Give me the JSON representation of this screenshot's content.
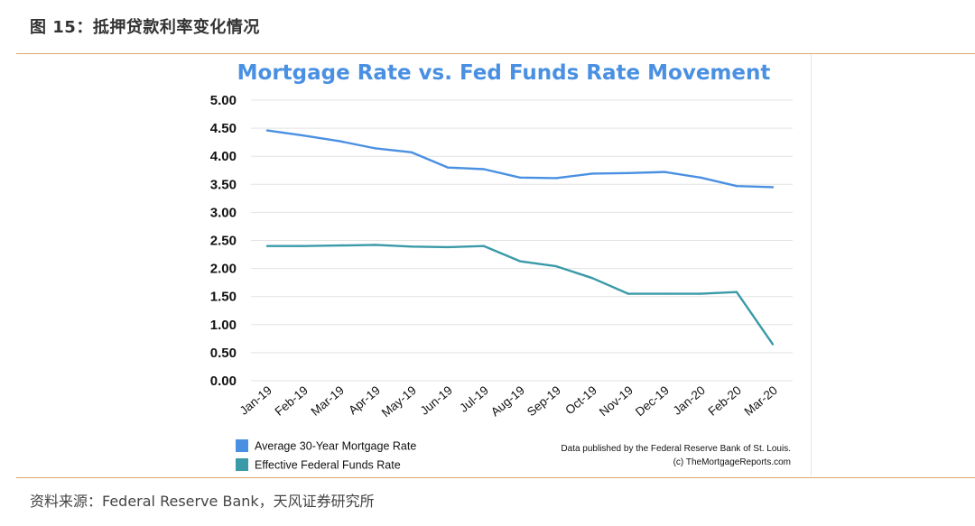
{
  "figure": {
    "title": "图 15：抵押贷款利率变化情况",
    "source": "资料来源：Federal Reserve Bank，天风证券研究所"
  },
  "chart_data": {
    "type": "line",
    "title": "Mortgage Rate vs. Fed Funds Rate Movement",
    "xlabel": "",
    "ylabel": "",
    "categories": [
      "Jan-19",
      "Feb-19",
      "Mar-19",
      "Apr-19",
      "May-19",
      "Jun-19",
      "Jul-19",
      "Aug-19",
      "Sep-19",
      "Oct-19",
      "Nov-19",
      "Dec-19",
      "Jan-20",
      "Feb-20",
      "Mar-20"
    ],
    "y_ticks": [
      "0.00",
      "0.50",
      "1.00",
      "1.50",
      "2.00",
      "2.50",
      "3.00",
      "3.50",
      "4.00",
      "4.50",
      "5.00"
    ],
    "ylim": [
      0,
      5
    ],
    "grid": true,
    "legend_position": "bottom-left",
    "series": [
      {
        "name": "Average 30-Year Mortgage Rate",
        "color": "#4a90e2",
        "values": [
          4.46,
          4.37,
          4.27,
          4.14,
          4.07,
          3.8,
          3.77,
          3.62,
          3.61,
          3.69,
          3.7,
          3.72,
          3.62,
          3.47,
          3.45
        ]
      },
      {
        "name": "Effective Federal Funds Rate",
        "color": "#3a9aa8",
        "values": [
          2.4,
          2.4,
          2.41,
          2.42,
          2.39,
          2.38,
          2.4,
          2.13,
          2.04,
          1.83,
          1.55,
          1.55,
          1.55,
          1.58,
          0.65
        ]
      }
    ],
    "annotations": [
      "Data published by the Federal Reserve Bank of St. Louis.",
      "(c) TheMortgageReports.com"
    ]
  }
}
